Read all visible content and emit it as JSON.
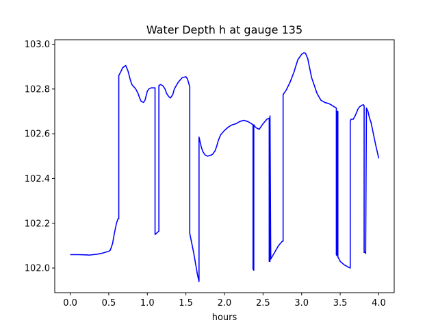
{
  "chart_data": {
    "type": "line",
    "title": "Water Depth h at gauge 135",
    "xlabel": "hours",
    "ylabel": "",
    "xlim": [
      -0.2,
      4.2
    ],
    "ylim": [
      101.89,
      103.02
    ],
    "xticks": [
      0.0,
      0.5,
      1.0,
      1.5,
      2.0,
      2.5,
      3.0,
      3.5,
      4.0
    ],
    "xtick_labels": [
      "0.0",
      "0.5",
      "1.0",
      "1.5",
      "2.0",
      "2.5",
      "3.0",
      "3.5",
      "4.0"
    ],
    "yticks": [
      102.0,
      102.2,
      102.4,
      102.6,
      102.8,
      103.0
    ],
    "ytick_labels": [
      "102.0",
      "102.2",
      "102.4",
      "102.6",
      "102.8",
      "103.0"
    ],
    "grid": false,
    "legend": "none",
    "series": [
      {
        "color": "#0000ff",
        "x": [
          0.0,
          0.1,
          0.2,
          0.25,
          0.3,
          0.35,
          0.4,
          0.45,
          0.5,
          0.52,
          0.55,
          0.57,
          0.6,
          0.62,
          0.63,
          0.63,
          0.66,
          0.68,
          0.7,
          0.72,
          0.75,
          0.78,
          0.8,
          0.85,
          0.88,
          0.9,
          0.92,
          0.95,
          0.97,
          1.0,
          1.02,
          1.05,
          1.08,
          1.1,
          1.1,
          1.15,
          1.15,
          1.17,
          1.2,
          1.23,
          1.25,
          1.28,
          1.3,
          1.33,
          1.35,
          1.4,
          1.45,
          1.5,
          1.52,
          1.55,
          1.55,
          1.6,
          1.65,
          1.67,
          1.67,
          1.68,
          1.7,
          1.72,
          1.75,
          1.78,
          1.8,
          1.83,
          1.85,
          1.88,
          1.9,
          1.92,
          1.95,
          2.0,
          2.05,
          2.1,
          2.15,
          2.2,
          2.25,
          2.3,
          2.35,
          2.37,
          2.37,
          2.38,
          2.38,
          2.4,
          2.42,
          2.45,
          2.5,
          2.55,
          2.58,
          2.58,
          2.59,
          2.59,
          2.6,
          2.65,
          2.7,
          2.75,
          2.76,
          2.76,
          2.8,
          2.85,
          2.9,
          2.95,
          3.0,
          3.03,
          3.05,
          3.08,
          3.1,
          3.13,
          3.15,
          3.2,
          3.25,
          3.3,
          3.35,
          3.38,
          3.4,
          3.45,
          3.45,
          3.46,
          3.46,
          3.47,
          3.47,
          3.5,
          3.55,
          3.6,
          3.63,
          3.63,
          3.64,
          3.67,
          3.7,
          3.73,
          3.75,
          3.78,
          3.8,
          3.81,
          3.81,
          3.83,
          3.83,
          3.84,
          3.86,
          3.88,
          3.9,
          3.93,
          3.96,
          4.0
        ],
        "y": [
          102.06,
          102.06,
          102.059,
          102.058,
          102.06,
          102.062,
          102.065,
          102.07,
          102.075,
          102.08,
          102.11,
          102.15,
          102.2,
          102.22,
          102.22,
          102.86,
          102.88,
          102.895,
          102.9,
          102.905,
          102.88,
          102.84,
          102.82,
          102.8,
          102.78,
          102.76,
          102.745,
          102.74,
          102.75,
          102.79,
          102.8,
          102.805,
          102.805,
          102.805,
          102.15,
          102.165,
          102.815,
          102.82,
          102.815,
          102.8,
          102.78,
          102.765,
          102.76,
          102.775,
          102.8,
          102.83,
          102.85,
          102.855,
          102.845,
          102.81,
          102.155,
          102.07,
          101.97,
          101.94,
          102.585,
          102.57,
          102.54,
          102.52,
          102.505,
          102.5,
          102.502,
          102.505,
          102.51,
          102.525,
          102.545,
          102.57,
          102.595,
          102.615,
          102.63,
          102.64,
          102.645,
          102.655,
          102.66,
          102.655,
          102.645,
          102.64,
          101.995,
          101.99,
          102.64,
          102.63,
          102.625,
          102.62,
          102.645,
          102.665,
          102.67,
          102.03,
          102.03,
          102.68,
          102.04,
          102.07,
          102.1,
          102.12,
          102.12,
          102.775,
          102.795,
          102.83,
          102.875,
          102.93,
          102.955,
          102.962,
          102.96,
          102.935,
          102.9,
          102.85,
          102.83,
          102.78,
          102.75,
          102.74,
          102.735,
          102.73,
          102.725,
          102.715,
          102.06,
          102.055,
          102.7,
          102.7,
          102.05,
          102.03,
          102.015,
          102.005,
          102.0,
          102.655,
          102.665,
          102.665,
          102.685,
          102.71,
          102.72,
          102.727,
          102.73,
          102.725,
          102.07,
          102.07,
          102.065,
          102.715,
          102.7,
          102.67,
          102.65,
          102.6,
          102.55,
          102.49
        ]
      }
    ]
  }
}
